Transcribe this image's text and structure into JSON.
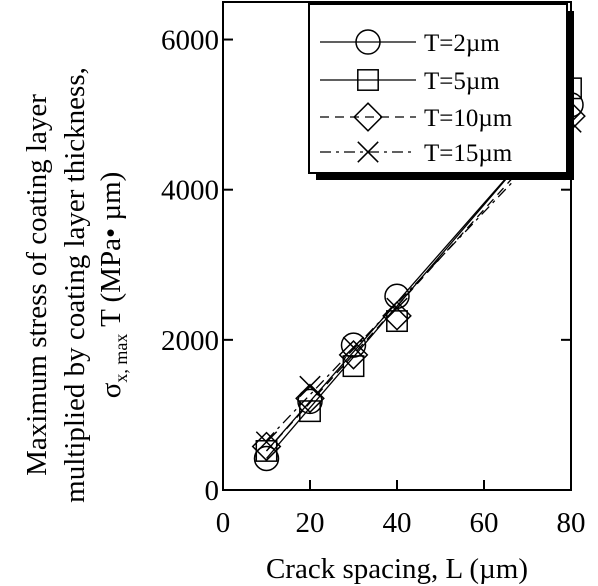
{
  "chart_data": {
    "type": "line",
    "xlabel": "Crack spacing, L (µm)",
    "ylabel_lines": [
      "Maximum stress of coating layer",
      "multiplied by coating layer thickness,"
    ],
    "ylabel_symbol": "σ",
    "ylabel_subscript": "x, max",
    "ylabel_rest": " T (MPa• µm)",
    "xlim": [
      0,
      80
    ],
    "ylim": [
      0,
      6500
    ],
    "xticks": [
      0,
      20,
      40,
      60,
      80
    ],
    "yticks": [
      0,
      2000,
      4000,
      6000
    ],
    "grid": false,
    "legend_position": "top-right",
    "series": [
      {
        "name": "T=2µm",
        "marker": "circle",
        "line": "solid",
        "x": [
          10,
          20,
          30,
          40,
          80
        ],
        "y": [
          420,
          1180,
          1930,
          2580,
          5130
        ],
        "fit": [
          [
            10,
            520
          ],
          [
            80,
            5140
          ]
        ]
      },
      {
        "name": "T=5µm",
        "marker": "square",
        "line": "solid",
        "x": [
          10,
          20,
          30,
          40,
          80
        ],
        "y": [
          520,
          1050,
          1650,
          2250,
          5350
        ],
        "fit": [
          [
            10,
            420
          ],
          [
            80,
            5150
          ]
        ]
      },
      {
        "name": "T=10µm",
        "marker": "diamond",
        "line": "dash",
        "x": [
          10,
          20,
          30,
          40,
          80
        ],
        "y": [
          580,
          1220,
          1800,
          2320,
          4980
        ],
        "fit": [
          [
            10,
            520
          ],
          [
            80,
            5020
          ]
        ]
      },
      {
        "name": "T=15µm",
        "marker": "x",
        "line": "dashdot",
        "x": [
          10,
          20,
          30,
          40,
          80
        ],
        "y": [
          640,
          1380,
          1900,
          2420,
          4900
        ],
        "fit": [
          [
            10,
            660
          ],
          [
            80,
            4920
          ]
        ]
      }
    ]
  }
}
